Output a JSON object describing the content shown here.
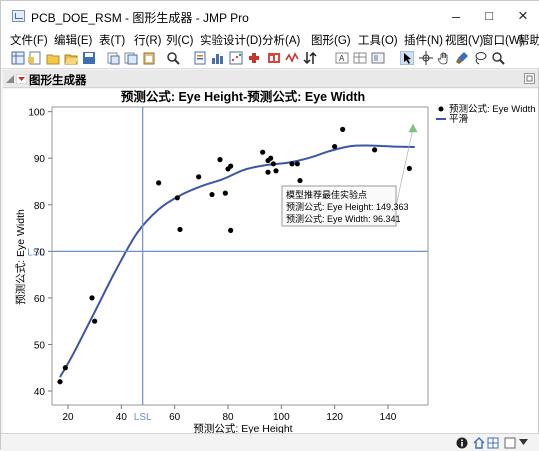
{
  "window": {
    "title": "PCB_DOE_RSM - 图形生成器 - JMP Pro",
    "minimize": "–",
    "maximize": "□",
    "close": "×"
  },
  "menu": [
    "文件(F)",
    "编辑(E)",
    "表(T)",
    "行(R)",
    "列(C)",
    "实验设计(D)",
    "分析(A)",
    "图形(G)",
    "工具(O)",
    "插件(N)",
    "视图(V)",
    "窗口(W)",
    "帮助(H)"
  ],
  "panel": {
    "title": "图形生成器"
  },
  "chart_data": {
    "type": "scatter",
    "title": "预测公式: Eye Height-预测公式: Eye Width",
    "xlabel": "预测公式: Eye Height",
    "ylabel": "预测公式: Eye Width",
    "xlim": [
      14,
      155
    ],
    "ylim": [
      37,
      101
    ],
    "x_ticks": [
      20,
      40,
      60,
      80,
      100,
      120,
      140
    ],
    "y_ticks": [
      40,
      50,
      60,
      70,
      80,
      90,
      100
    ],
    "lsl_x": 48,
    "lsl_y": 70,
    "lsl_label": "LSL",
    "points": [
      {
        "x": 17,
        "y": 42
      },
      {
        "x": 19,
        "y": 45
      },
      {
        "x": 29,
        "y": 60
      },
      {
        "x": 30,
        "y": 55
      },
      {
        "x": 54,
        "y": 84.7
      },
      {
        "x": 61,
        "y": 81.5
      },
      {
        "x": 62,
        "y": 74.7
      },
      {
        "x": 69,
        "y": 86
      },
      {
        "x": 74,
        "y": 82.2
      },
      {
        "x": 77,
        "y": 89.7
      },
      {
        "x": 79,
        "y": 82.5
      },
      {
        "x": 80,
        "y": 87.7
      },
      {
        "x": 81,
        "y": 74.5
      },
      {
        "x": 81,
        "y": 88.3
      },
      {
        "x": 93,
        "y": 91.3
      },
      {
        "x": 95,
        "y": 87
      },
      {
        "x": 95,
        "y": 89.5
      },
      {
        "x": 96,
        "y": 90
      },
      {
        "x": 97,
        "y": 88.8
      },
      {
        "x": 98,
        "y": 87.3
      },
      {
        "x": 104,
        "y": 88.8
      },
      {
        "x": 106,
        "y": 88.8
      },
      {
        "x": 107,
        "y": 85.2
      },
      {
        "x": 120,
        "y": 92.5
      },
      {
        "x": 123,
        "y": 96.2
      },
      {
        "x": 135,
        "y": 91.8
      },
      {
        "x": 148,
        "y": 87.8
      }
    ],
    "optimum": {
      "x": 149.363,
      "y": 96.341
    },
    "smoother": [
      {
        "x": 17,
        "y": 43
      },
      {
        "x": 22,
        "y": 48
      },
      {
        "x": 30,
        "y": 57
      },
      {
        "x": 38,
        "y": 66
      },
      {
        "x": 46,
        "y": 74
      },
      {
        "x": 54,
        "y": 79
      },
      {
        "x": 62,
        "y": 82
      },
      {
        "x": 70,
        "y": 84
      },
      {
        "x": 78,
        "y": 85.5
      },
      {
        "x": 86,
        "y": 87.5
      },
      {
        "x": 94,
        "y": 88.5
      },
      {
        "x": 102,
        "y": 89
      },
      {
        "x": 110,
        "y": 90
      },
      {
        "x": 118,
        "y": 91.5
      },
      {
        "x": 126,
        "y": 92.6
      },
      {
        "x": 134,
        "y": 92.7
      },
      {
        "x": 142,
        "y": 92.5
      },
      {
        "x": 150,
        "y": 92.4
      }
    ],
    "legend": [
      {
        "label": "预测公式: Eye Width",
        "kind": "point"
      },
      {
        "label": "平滑",
        "kind": "line"
      }
    ],
    "tooltip": {
      "line1": "模型推荐最佳实验点",
      "line2": "预测公式: Eye Height: 149.363",
      "line3": "预测公式: Eye Width: 96.341"
    },
    "colors": {
      "point": "#000000",
      "smoother": "#3b55a8",
      "lsl": "#6f8fcf",
      "optimum": "#7dc27d"
    }
  }
}
